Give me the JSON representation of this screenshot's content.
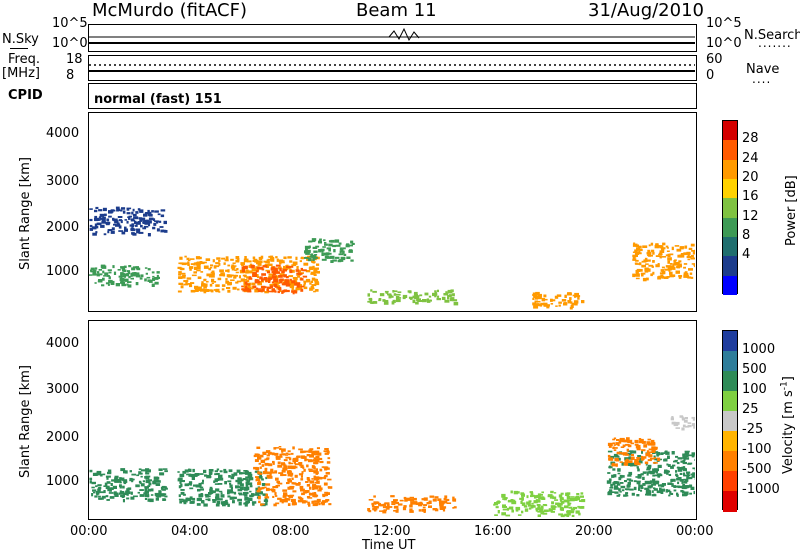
{
  "header": {
    "station": "McMurdo (fitACF)",
    "beam": "Beam 11",
    "date": "31/Aug/2010"
  },
  "noise_panel": {
    "left_label": "N.Sky",
    "right_label": "N.Search",
    "left_ticks": [
      "10^5",
      "10^0"
    ],
    "right_ticks": [
      "10^5",
      "10^0"
    ]
  },
  "freq_panel": {
    "left_label_1": "Freq.",
    "left_label_2": "[MHz]",
    "right_label": "Nave",
    "left_ticks": [
      "18",
      "8"
    ],
    "right_ticks": [
      "60",
      "0"
    ]
  },
  "cpid_panel": {
    "label": "CPID",
    "text": "normal (fast) 151"
  },
  "axes": {
    "ylabel": "Slant Range [km]",
    "yticks": [
      "4000",
      "3000",
      "2000",
      "1000"
    ],
    "xlabel": "Time UT",
    "xticks": [
      "00:00",
      "04:00",
      "08:00",
      "12:00",
      "16:00",
      "20:00",
      "00:00"
    ]
  },
  "power_colorbar": {
    "title": "Power [dB]",
    "ticks": [
      "28",
      "24",
      "20",
      "16",
      "12",
      "8",
      "4"
    ],
    "colors": [
      "#d40000",
      "#ff5a00",
      "#ff9a00",
      "#ffd200",
      "#7fc241",
      "#3d9a55",
      "#1f6e6e",
      "#1c3c8c",
      "#0000ff"
    ]
  },
  "velocity_colorbar": {
    "title": "Velocity [m s^-1]",
    "ticks": [
      "1000",
      "500",
      "100",
      "25",
      "-25",
      "-100",
      "-500",
      "-1000"
    ],
    "colors": [
      "#1f3d9e",
      "#2e7d9a",
      "#2e8b57",
      "#7fd041",
      "#c8c8c8",
      "#ffb400",
      "#ff8000",
      "#ff4000",
      "#e00000"
    ]
  },
  "chart_data": [
    {
      "type": "heatmap",
      "title": "Power [dB]",
      "xlabel": "Time UT",
      "ylabel": "Slant Range [km]",
      "xlim": [
        "00:00",
        "24:00"
      ],
      "ylim": [
        180,
        4600
      ],
      "grid": false,
      "color_scale": [
        4,
        8,
        12,
        16,
        20,
        24,
        28
      ],
      "regions": [
        {
          "t_start": 0.0,
          "t_end": 2.8,
          "r_low": 750,
          "r_high": 1200,
          "power_db": 12
        },
        {
          "t_start": 3.5,
          "t_end": 9.0,
          "r_low": 600,
          "r_high": 1400,
          "power_db": 24
        },
        {
          "t_start": 6.0,
          "t_end": 8.5,
          "r_low": 600,
          "r_high": 1200,
          "power_db": 30
        },
        {
          "t_start": 8.5,
          "t_end": 10.5,
          "r_low": 1300,
          "r_high": 1800,
          "power_db": 14
        },
        {
          "t_start": 11.0,
          "t_end": 14.5,
          "r_low": 350,
          "r_high": 650,
          "power_db": 18
        },
        {
          "t_start": 17.5,
          "t_end": 19.5,
          "r_low": 250,
          "r_high": 600,
          "power_db": 24
        },
        {
          "t_start": 21.5,
          "t_end": 24.0,
          "r_low": 900,
          "r_high": 1700,
          "power_db": 26
        },
        {
          "t_start": 0.0,
          "t_end": 3.0,
          "r_low": 1900,
          "r_high": 2500,
          "power_db": 6
        }
      ]
    },
    {
      "type": "heatmap",
      "title": "Velocity [m s^-1]",
      "xlabel": "Time UT",
      "ylabel": "Slant Range [km]",
      "xlim": [
        "00:00",
        "24:00"
      ],
      "ylim": [
        180,
        4600
      ],
      "grid": false,
      "color_scale": [
        -1000,
        -500,
        -100,
        -25,
        25,
        100,
        500,
        1000
      ],
      "regions": [
        {
          "t_start": 0.0,
          "t_end": 3.0,
          "r_low": 600,
          "r_high": 1300,
          "velocity": 100
        },
        {
          "t_start": 3.5,
          "t_end": 7.0,
          "r_low": 500,
          "r_high": 1300,
          "velocity": 150
        },
        {
          "t_start": 6.5,
          "t_end": 9.5,
          "r_low": 500,
          "r_high": 1800,
          "velocity": -150
        },
        {
          "t_start": 11.0,
          "t_end": 14.5,
          "r_low": 350,
          "r_high": 700,
          "velocity": -120
        },
        {
          "t_start": 16.0,
          "t_end": 19.5,
          "r_low": 250,
          "r_high": 800,
          "velocity": 60
        },
        {
          "t_start": 20.5,
          "t_end": 24.0,
          "r_low": 700,
          "r_high": 1700,
          "velocity": 200
        },
        {
          "t_start": 20.5,
          "t_end": 22.5,
          "r_low": 1400,
          "r_high": 2000,
          "velocity": -200
        },
        {
          "t_start": 23.0,
          "t_end": 24.0,
          "r_low": 2200,
          "r_high": 2500,
          "velocity": 10
        }
      ]
    }
  ]
}
